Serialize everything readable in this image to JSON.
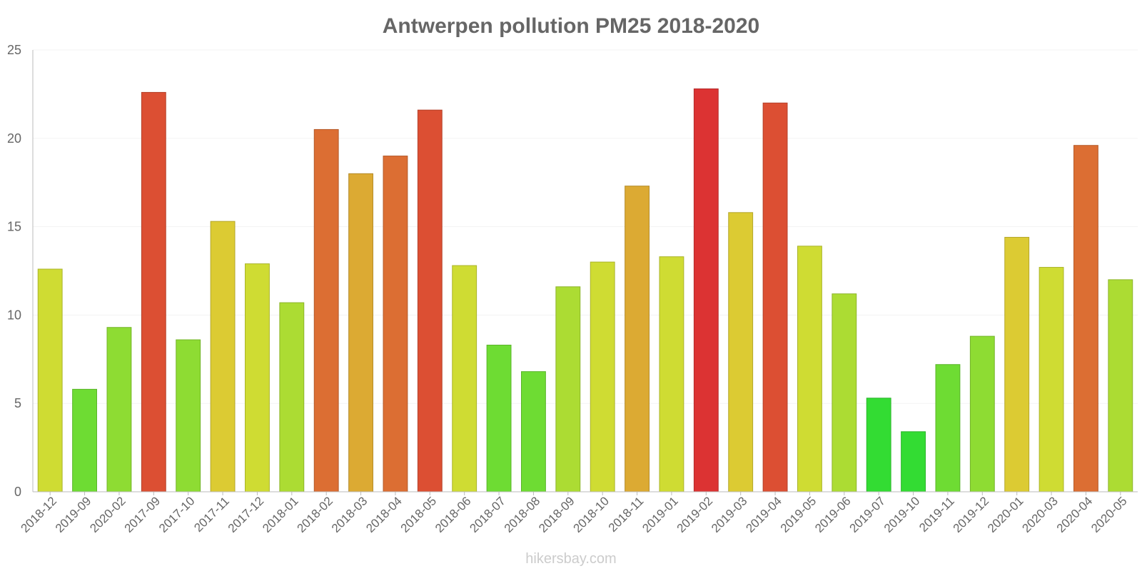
{
  "chart_data": {
    "type": "bar",
    "title": "Antwerpen pollution PM25 2018-2020",
    "xlabel": "",
    "ylabel": "",
    "ylim": [
      0,
      25
    ],
    "yticks": [
      0,
      5,
      10,
      15,
      20,
      25
    ],
    "grid": true,
    "categories": [
      "2018-12",
      "2019-09",
      "2020-02",
      "2017-09",
      "2017-10",
      "2017-11",
      "2017-12",
      "2018-01",
      "2018-02",
      "2018-03",
      "2018-04",
      "2018-05",
      "2018-06",
      "2018-07",
      "2018-08",
      "2018-09",
      "2018-10",
      "2018-11",
      "2019-01",
      "2019-02",
      "2019-03",
      "2019-04",
      "2019-05",
      "2019-06",
      "2019-07",
      "2019-10",
      "2019-11",
      "2019-12",
      "2020-01",
      "2020-03",
      "2020-04",
      "2020-05"
    ],
    "values": [
      12.6,
      5.8,
      9.3,
      22.6,
      8.6,
      15.3,
      12.9,
      10.7,
      20.5,
      18.0,
      19.0,
      21.6,
      12.8,
      8.3,
      6.8,
      11.6,
      13.0,
      17.3,
      13.3,
      22.8,
      15.8,
      22.0,
      13.9,
      11.2,
      5.3,
      3.4,
      7.2,
      8.8,
      14.4,
      12.7,
      19.6,
      12.0
    ],
    "colors": [
      "#cfdc33",
      "#6edc33",
      "#8edc33",
      "#dc4f33",
      "#8edc33",
      "#dccb33",
      "#cfdc33",
      "#acdc33",
      "#dc6e33",
      "#dcaa33",
      "#dc6e33",
      "#dc4f33",
      "#cfdc33",
      "#6edc33",
      "#6edc33",
      "#acdc33",
      "#cfdc33",
      "#dcaa33",
      "#cfdc33",
      "#dc3333",
      "#dccb33",
      "#dc4f33",
      "#cfdc33",
      "#acdc33",
      "#33dc33",
      "#33dc33",
      "#6edc33",
      "#8edc33",
      "#dccb33",
      "#cfdc33",
      "#dc6e33",
      "#acdc33"
    ]
  },
  "credit": "hikersbay.com"
}
